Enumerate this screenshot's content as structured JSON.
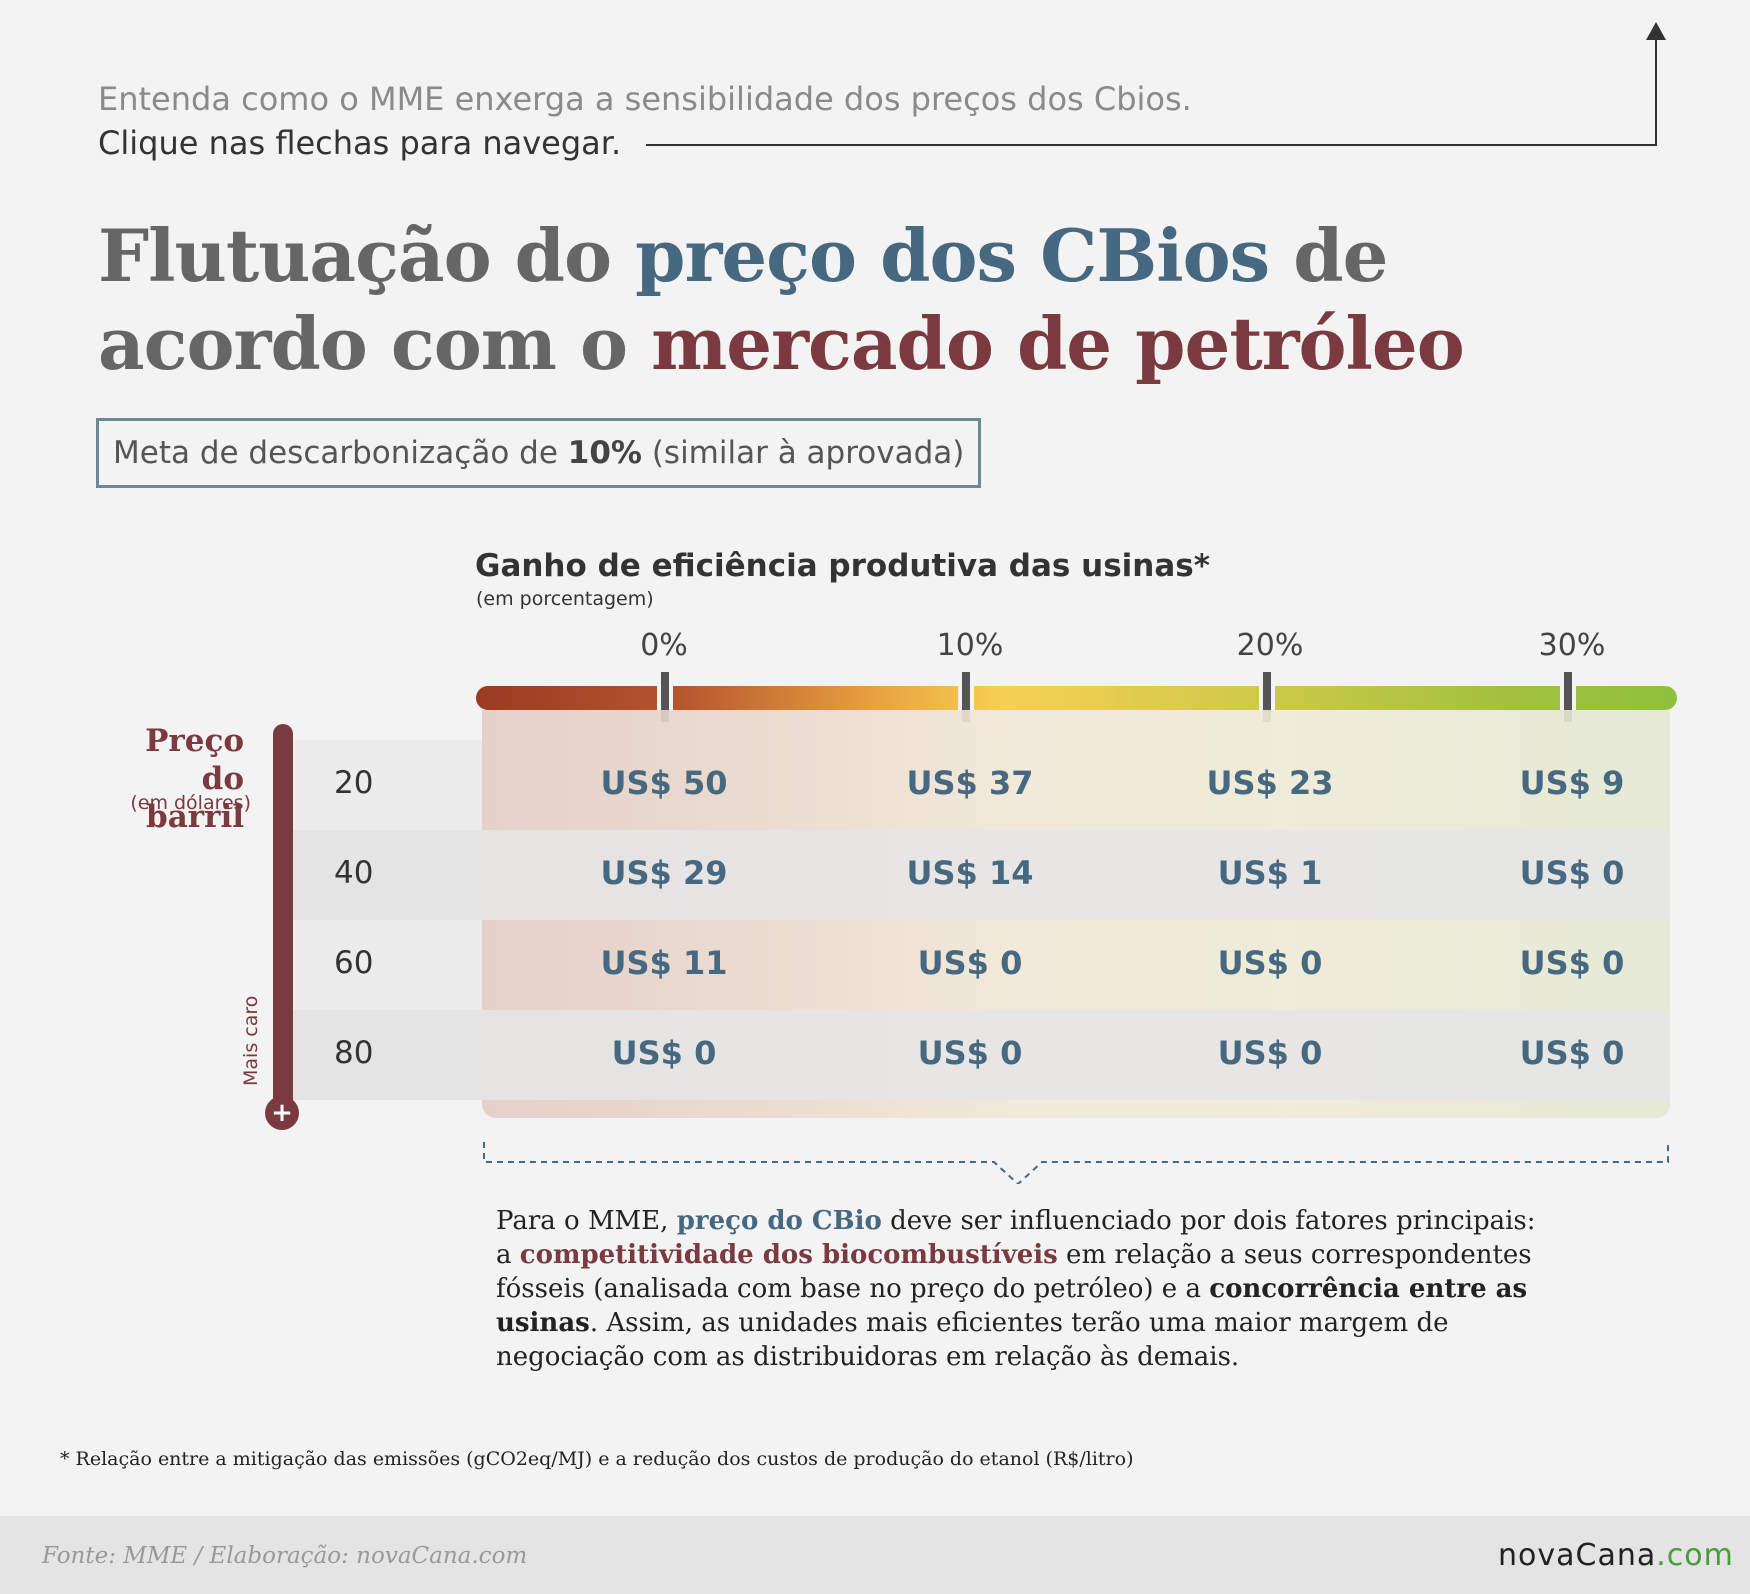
{
  "intro": {
    "line1": "Entenda como o MME enxerga a sensibilidade dos preços dos Cbios.",
    "line2": "Clique nas flechas para navegar."
  },
  "headline": {
    "part1": "Flutuação do ",
    "part2_blue": "preço dos CBios",
    "part3": " de acordo com o ",
    "part4_red": "mercado de petróleo"
  },
  "meta": {
    "prefix": "Meta de descarbonização de ",
    "value": "10%",
    "suffix": " (similar à aprovada)"
  },
  "chart_data": {
    "type": "table",
    "title": "Ganho de eficiência produtiva das usinas*",
    "subtitle": "(em porcentagem)",
    "column_labels": [
      "0%",
      "10%",
      "20%",
      "30%"
    ],
    "row_axis_title": "Preço do barril",
    "row_axis_subtitle": "(em dólares)",
    "row_axis_direction_label": "Mais caro",
    "row_axis_end_symbol": "+",
    "rows": [
      {
        "price": "20",
        "values": [
          "US$ 50",
          "US$ 37",
          "US$ 23",
          "US$ 9"
        ]
      },
      {
        "price": "40",
        "values": [
          "US$ 29",
          "US$ 14",
          "US$ 1",
          "US$ 0"
        ]
      },
      {
        "price": "60",
        "values": [
          "US$ 11",
          "US$ 0",
          "US$ 0",
          "US$ 0"
        ]
      },
      {
        "price": "80",
        "values": [
          "US$ 0",
          "US$ 0",
          "US$ 0",
          "US$ 0"
        ]
      }
    ],
    "numeric_values": [
      [
        50,
        37,
        23,
        9
      ],
      [
        29,
        14,
        1,
        0
      ],
      [
        11,
        0,
        0,
        0
      ],
      [
        0,
        0,
        0,
        0
      ]
    ],
    "gradient_colors": [
      "#9a3a22",
      "#e8a040",
      "#f7cf55",
      "#8fc13c"
    ]
  },
  "description": {
    "t1": "Para o MME, ",
    "t2_blue": "preço do CBio",
    "t3": " deve ser influenciado por dois fatores principais: a ",
    "t4_red": "competitividade dos biocombustíveis",
    "t5": " em relação a seus correspondentes fósseis (analisada com base no preço do petróleo) e a ",
    "t6_bold": "concorrência entre as usinas",
    "t7": ". Assim, as unidades mais eficientes terão uma maior margem de negociação com as distribuidoras em relação às demais."
  },
  "footnote": "* Relação entre a mitigação das emissões (gCO2eq/MJ) e a redução dos custos de produção do etanol (R$/litro)",
  "footer": {
    "source": "Fonte: MME / Elaboração: novaCana.com",
    "logo_main": "novaCana",
    "logo_suffix": ".com"
  },
  "colors": {
    "blue_accent": "#466880",
    "red_accent": "#7a3a3f",
    "logo_green": "#4a9a3a"
  }
}
